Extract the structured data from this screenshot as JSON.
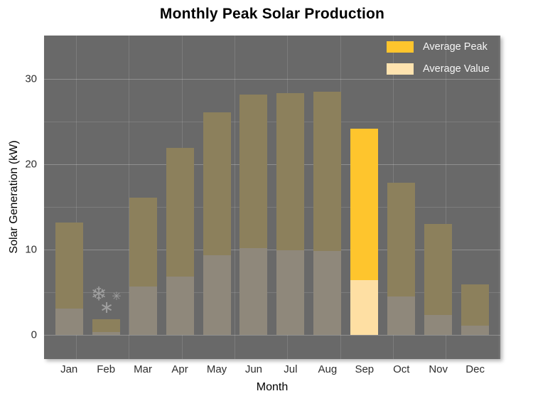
{
  "title": "Monthly Peak Solar Production",
  "y_axis": {
    "label": "Solar Generation (kW)",
    "ticks": [
      0,
      10,
      20,
      30
    ]
  },
  "x_axis": {
    "label": "Month"
  },
  "legend": {
    "items": [
      {
        "label": "Average Peak",
        "color": "#fec52d"
      },
      {
        "label": "Average Value",
        "color": "#fee3af"
      }
    ]
  },
  "colors": {
    "panel_background": "#696969",
    "highlight_peak": "#fec52d",
    "highlight_value": "#fedfa3",
    "dim_peak": "#8c805c",
    "dim_value": "#8f887b",
    "snowflake": "#a8a8a8"
  },
  "chart_data": {
    "type": "bar",
    "title": "Monthly Peak Solar Production",
    "xlabel": "Month",
    "ylabel": "Solar Generation (kW)",
    "categories": [
      "Jan",
      "Feb",
      "Mar",
      "Apr",
      "May",
      "Jun",
      "Jul",
      "Aug",
      "Sep",
      "Oct",
      "Nov",
      "Dec"
    ],
    "series": [
      {
        "name": "Average Peak",
        "values": [
          13.2,
          1.8,
          16.1,
          21.9,
          26.1,
          28.2,
          28.3,
          28.5,
          24.2,
          17.8,
          13.0,
          5.9
        ]
      },
      {
        "name": "Average Value",
        "values": [
          3.1,
          0.3,
          5.7,
          6.8,
          9.3,
          10.2,
          9.9,
          9.8,
          6.4,
          4.5,
          2.3,
          1.1
        ]
      }
    ],
    "highlighted_category": "Sep",
    "ylim": [
      0,
      35
    ],
    "y_major_gridlines": [
      0,
      10,
      20,
      30
    ],
    "y_minor_gridlines": [
      5,
      15,
      25
    ],
    "legend_position": "top-right",
    "grid": true,
    "annotations": {
      "snowflakes": [
        {
          "char": "❄",
          "x": 77,
          "y": 364,
          "size": 27
        },
        {
          "char": "✳",
          "x": 102,
          "y": 368,
          "size": 16
        },
        {
          "char": "∗",
          "x": 88,
          "y": 383,
          "size": 24
        }
      ]
    }
  }
}
